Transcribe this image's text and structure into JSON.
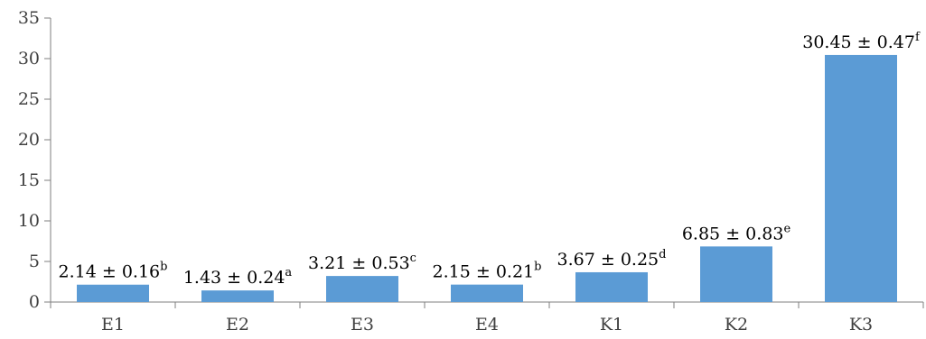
{
  "chart_data": {
    "type": "bar",
    "categories": [
      "E1",
      "E2",
      "E3",
      "E4",
      "K1",
      "K2",
      "K3"
    ],
    "values": [
      2.14,
      1.43,
      3.21,
      2.15,
      3.67,
      6.85,
      30.45
    ],
    "errors": [
      0.16,
      0.24,
      0.53,
      0.21,
      0.25,
      0.83,
      0.47
    ],
    "data_labels": [
      {
        "text": "2.14 ± 0.16",
        "sup": "b"
      },
      {
        "text": "1.43 ± 0.24",
        "sup": "a"
      },
      {
        "text": "3.21 ± 0.53",
        "sup": "c"
      },
      {
        "text": "2.15 ± 0.21",
        "sup": "b"
      },
      {
        "text": "3.67 ± 0.25",
        "sup": "d"
      },
      {
        "text": "6.85 ± 0.83",
        "sup": "e"
      },
      {
        "text": "30.45 ± 0.47",
        "sup": "f"
      }
    ],
    "ylim": [
      0,
      35
    ],
    "yticks": [
      0,
      5,
      10,
      15,
      20,
      25,
      30,
      35
    ],
    "title": "",
    "xlabel": "",
    "ylabel": "",
    "grid": false,
    "bar_color": "#5b9bd5",
    "axis_color": "#7f7f7f"
  }
}
